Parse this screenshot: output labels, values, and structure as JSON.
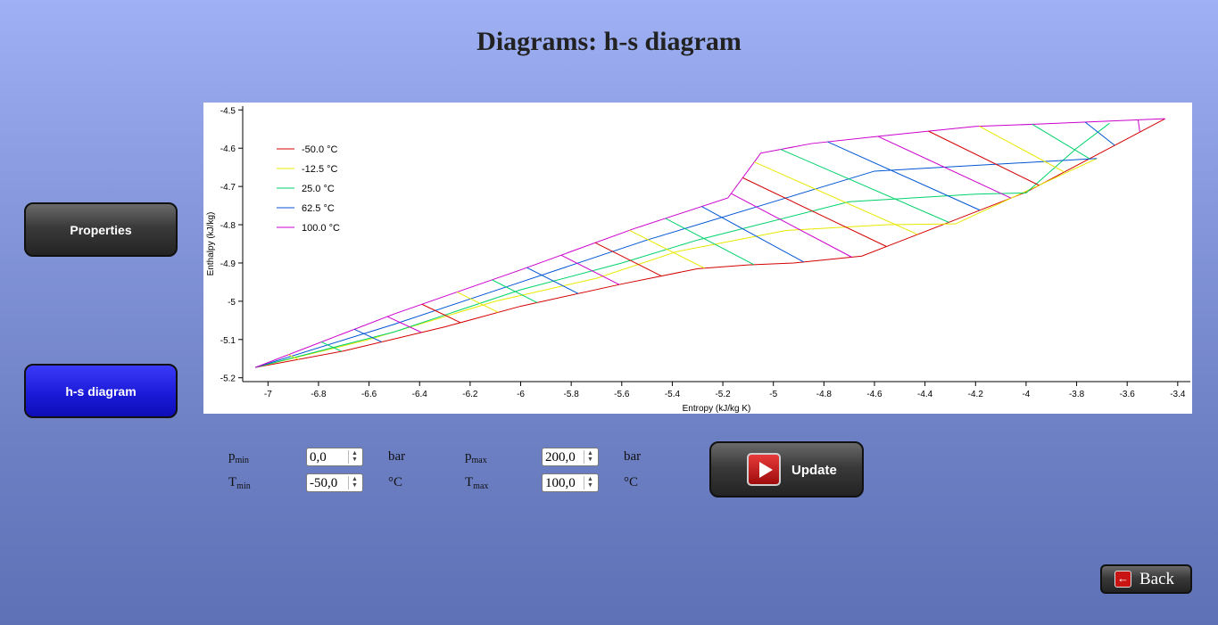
{
  "page": {
    "title": "Diagrams: h-s diagram"
  },
  "nav": {
    "properties_label": "Properties",
    "hs_label": "h-s diagram"
  },
  "params": {
    "p_min": {
      "symbol": "p",
      "sub": "min",
      "value": "0,0",
      "unit": "bar"
    },
    "p_max": {
      "symbol": "p",
      "sub": "max",
      "value": "200,0",
      "unit": "bar"
    },
    "t_min": {
      "symbol": "T",
      "sub": "min",
      "value": "-50,0",
      "unit": "°C"
    },
    "t_max": {
      "symbol": "T",
      "sub": "max",
      "value": "100,0",
      "unit": "°C"
    }
  },
  "buttons": {
    "update_label": "Update",
    "back_label": "Back",
    "back_icon": "←"
  },
  "chart_data": {
    "type": "line",
    "xlabel": "Entropy (kJ/kg K)",
    "ylabel": "Enthalpy (kJ/kg)",
    "xlim": [
      -7.1,
      -3.35
    ],
    "ylim": [
      -5.21,
      -4.49
    ],
    "xticks": [
      -7,
      -6.8,
      -6.6,
      -6.4,
      -6.2,
      -6,
      -5.8,
      -5.6,
      -5.4,
      -5.2,
      -5,
      -4.8,
      -4.6,
      -4.4,
      -4.2,
      -4,
      -3.8,
      -3.6,
      -3.4
    ],
    "yticks": [
      -4.5,
      -4.6,
      -4.7,
      -4.8,
      -4.9,
      -5,
      -5.1,
      -5.2
    ],
    "legend_position": "top-left",
    "isotherms": [
      {
        "name": "-50.0 °C",
        "color": "#d40000",
        "x": [
          -7.05,
          -6.7,
          -6.3,
          -6.0,
          -5.6,
          -5.3,
          -5.1,
          -4.92,
          -4.65,
          -4.33,
          -4.0,
          -3.45
        ],
        "y": [
          -5.173,
          -5.13,
          -5.067,
          -5.013,
          -4.955,
          -4.915,
          -4.905,
          -4.9,
          -4.882,
          -4.8,
          -4.715,
          -4.523
        ]
      },
      {
        "name": "-12.5 °C",
        "color": "#e8e800",
        "x": [
          -7.05,
          -6.6,
          -6.1,
          -5.7,
          -5.38,
          -4.95,
          -4.55,
          -4.28,
          -3.72
        ],
        "y": [
          -5.173,
          -5.1,
          -5.0,
          -4.94,
          -4.87,
          -4.815,
          -4.8,
          -4.798,
          -4.627
        ]
      },
      {
        "name": "25.0 °C",
        "color": "#00d26a",
        "x": [
          -7.05,
          -6.5,
          -6.0,
          -5.6,
          -5.3,
          -4.7,
          -4.2,
          -4.0,
          -3.8,
          -3.67
        ],
        "y": [
          -5.173,
          -5.08,
          -4.97,
          -4.9,
          -4.84,
          -4.74,
          -4.72,
          -4.717,
          -4.6,
          -4.535
        ]
      },
      {
        "name": "62.5 °C",
        "color": "#0055d4",
        "x": [
          -7.05,
          -6.5,
          -6.0,
          -5.5,
          -5.0,
          -4.6,
          -3.72
        ],
        "y": [
          -5.173,
          -5.06,
          -4.95,
          -4.84,
          -4.74,
          -4.66,
          -4.627
        ]
      },
      {
        "name": "100.0 °C",
        "color": "#cc00cc",
        "x": [
          -7.05,
          -6.5,
          -6.0,
          -5.55,
          -5.18,
          -5.05,
          -4.85,
          -4.6,
          -4.2,
          -3.95,
          -3.45
        ],
        "y": [
          -5.173,
          -5.033,
          -4.918,
          -4.81,
          -4.73,
          -4.613,
          -4.588,
          -4.57,
          -4.543,
          -4.537,
          -4.523
        ]
      }
    ],
    "isobar_count": 24,
    "isobar_colors": [
      "#d40000",
      "#e8e800",
      "#00d26a",
      "#0055d4",
      "#cc00cc"
    ]
  }
}
